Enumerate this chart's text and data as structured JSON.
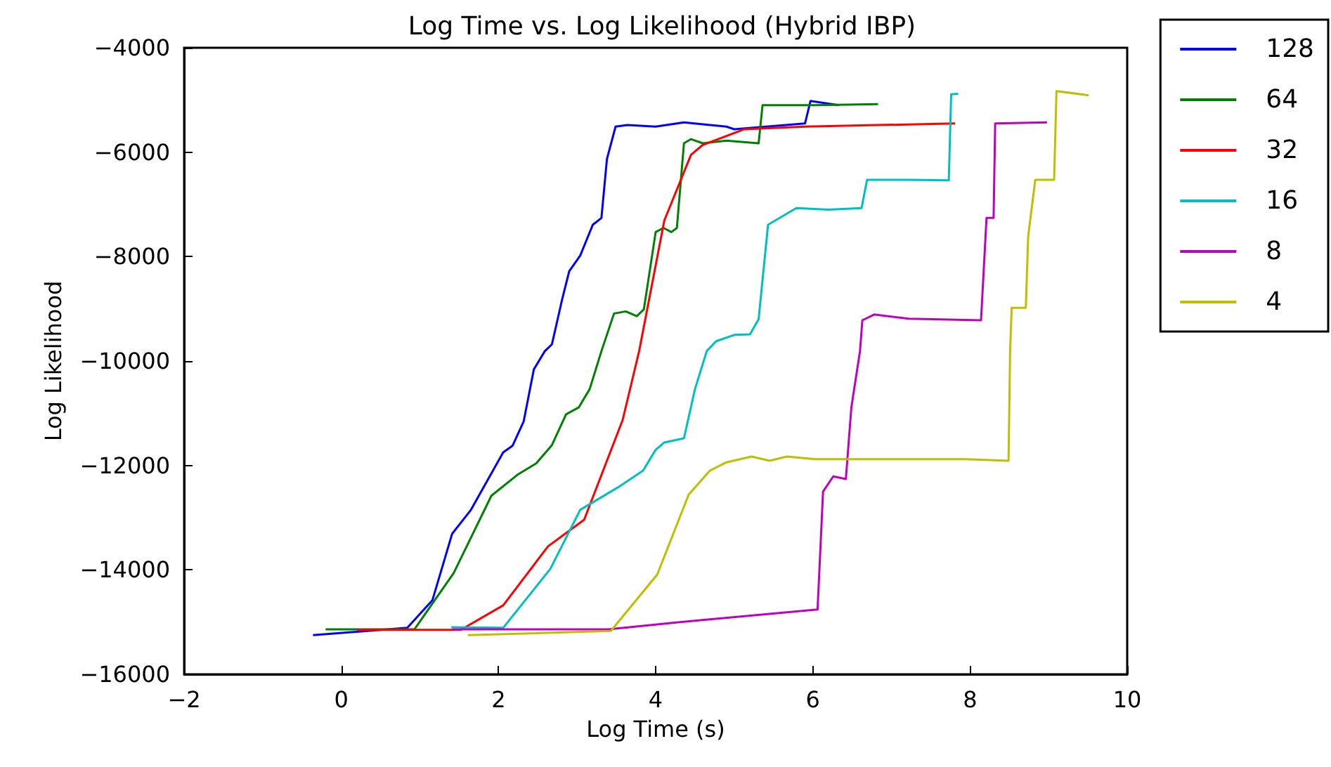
{
  "chart_data": {
    "type": "line",
    "title": "Log Time vs. Log Likelihood (Hybrid IBP)",
    "xlabel": "Log Time (s)",
    "ylabel": "Log Likelihood",
    "xlim": [
      -2,
      10
    ],
    "xticks": [
      -2,
      0,
      2,
      4,
      6,
      8,
      10
    ],
    "ylim": [
      -16000,
      -4000
    ],
    "yticks": [
      -16000,
      -14000,
      -12000,
      -10000,
      -8000,
      -6000,
      -4000
    ],
    "grid": false,
    "legend": "right",
    "marker": "none",
    "line_style": "solid",
    "series": [
      {
        "name": "128",
        "color": "#0000ff",
        "x": [
          -0.36,
          0.84,
          1.16,
          1.41,
          1.65,
          2.06,
          2.18,
          2.32,
          2.45,
          2.59,
          2.68,
          2.81,
          2.9,
          3.04,
          3.2,
          3.31,
          3.38,
          3.49,
          3.64,
          4.0,
          4.36,
          4.9,
          5.0,
          5.9,
          5.97,
          6.33
        ],
        "values": [
          -15250,
          -15110,
          -14580,
          -13310,
          -12850,
          -11750,
          -11620,
          -11160,
          -10160,
          -9810,
          -9680,
          -8820,
          -8280,
          -7980,
          -7390,
          -7260,
          -6130,
          -5510,
          -5480,
          -5510,
          -5430,
          -5510,
          -5560,
          -5450,
          -5020,
          -5100
        ]
      },
      {
        "name": "64",
        "color": "#008000",
        "x": [
          -0.2,
          0.93,
          1.43,
          1.91,
          2.24,
          2.48,
          2.68,
          2.86,
          3.02,
          3.16,
          3.31,
          3.47,
          3.62,
          3.76,
          3.85,
          4.0,
          4.1,
          4.2,
          4.27,
          4.36,
          4.45,
          4.6,
          4.9,
          5.31,
          5.36,
          6.03,
          6.83
        ],
        "values": [
          -15140,
          -15140,
          -14060,
          -12580,
          -12180,
          -11960,
          -11610,
          -11020,
          -10890,
          -10540,
          -9810,
          -9090,
          -9050,
          -9140,
          -9010,
          -7530,
          -7450,
          -7530,
          -7450,
          -5830,
          -5750,
          -5830,
          -5780,
          -5830,
          -5100,
          -5100,
          -5080
        ]
      },
      {
        "name": "32",
        "color": "#ff0000",
        "x": [
          0.2,
          1.52,
          2.06,
          2.63,
          3.09,
          3.58,
          3.79,
          4.11,
          4.45,
          4.6,
          5.13,
          5.9,
          7.81
        ],
        "values": [
          -15150,
          -15150,
          -14680,
          -13550,
          -13040,
          -11130,
          -9810,
          -7310,
          -6050,
          -5860,
          -5560,
          -5510,
          -5450
        ]
      },
      {
        "name": "16",
        "color": "#00bfbf",
        "x": [
          1.4,
          2.06,
          2.66,
          3.04,
          3.52,
          3.84,
          4.0,
          4.11,
          4.36,
          4.5,
          4.65,
          4.77,
          5.0,
          5.2,
          5.31,
          5.43,
          5.79,
          6.2,
          6.62,
          6.69,
          7.2,
          7.73,
          7.76,
          7.85
        ],
        "values": [
          -15100,
          -15110,
          -13980,
          -12850,
          -12420,
          -12100,
          -11700,
          -11560,
          -11480,
          -10540,
          -9810,
          -9620,
          -9500,
          -9490,
          -9200,
          -7390,
          -7070,
          -7100,
          -7070,
          -6530,
          -6530,
          -6540,
          -4890,
          -4880
        ]
      },
      {
        "name": "8",
        "color": "#bf00bf",
        "x": [
          1.41,
          3.4,
          4.24,
          6.06,
          6.13,
          6.26,
          6.42,
          6.49,
          6.6,
          6.63,
          6.78,
          7.22,
          8.14,
          8.21,
          8.3,
          8.32,
          8.98
        ],
        "values": [
          -15140,
          -15140,
          -15010,
          -14760,
          -12500,
          -12210,
          -12260,
          -10890,
          -9810,
          -9220,
          -9110,
          -9190,
          -9220,
          -7260,
          -7260,
          -5450,
          -5430
        ]
      },
      {
        "name": "4",
        "color": "#bfbf00",
        "x": [
          1.61,
          3.43,
          4.02,
          4.42,
          4.69,
          4.9,
          5.22,
          5.45,
          5.67,
          6.03,
          7.94,
          8.49,
          8.51,
          8.53,
          8.71,
          8.74,
          8.83,
          9.07,
          9.1,
          9.51
        ],
        "values": [
          -15250,
          -15170,
          -14090,
          -12560,
          -12100,
          -11940,
          -11830,
          -11910,
          -11830,
          -11880,
          -11880,
          -11910,
          -9810,
          -8980,
          -8980,
          -7610,
          -6530,
          -6530,
          -4830,
          -4910
        ]
      }
    ]
  }
}
